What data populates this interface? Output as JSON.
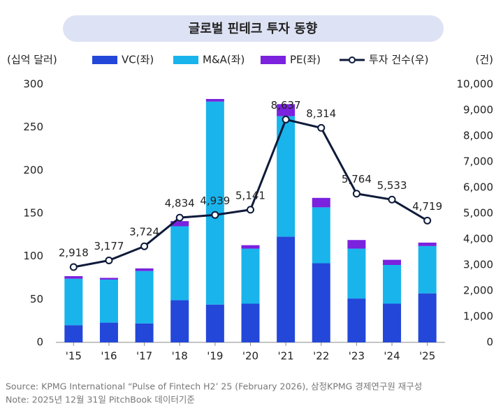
{
  "chart_data": {
    "type": "bar",
    "title": "글로벌 핀테크 투자 동향",
    "y_label": "(십억 달러)",
    "y2_label": "(건)",
    "categories": [
      "'15",
      "'16",
      "'17",
      "'18",
      "'19",
      "'20",
      "'21",
      "'22",
      "'23",
      "'24",
      "'25"
    ],
    "series": [
      {
        "name": "VC(좌)",
        "color": "#2347d9",
        "values": [
          20,
          23,
          22,
          49,
          44,
          45,
          123,
          92,
          51,
          45,
          57
        ]
      },
      {
        "name": "M&A(좌)",
        "color": "#19b4ec",
        "values": [
          54,
          50,
          61,
          86,
          236,
          64,
          140,
          65,
          58,
          45,
          55
        ]
      },
      {
        "name": "PE(좌)",
        "color": "#7a22de",
        "values": [
          3,
          2,
          3,
          6,
          3,
          4,
          14,
          11,
          10,
          6,
          4
        ]
      },
      {
        "name": "투자 건수(우)",
        "color": "#0e1a3a",
        "type": "line",
        "axis": "y2",
        "values": [
          2918,
          3177,
          3724,
          4834,
          4939,
          5141,
          8637,
          8314,
          5764,
          5533,
          4719
        ],
        "value_labels": [
          "2,918",
          "3,177",
          "3,724",
          "4,834",
          "4,939",
          "5,141",
          "8,637",
          "8,314",
          "5,764",
          "5,533",
          "4,719"
        ]
      }
    ],
    "ylim": [
      0,
      300
    ],
    "yticks": [
      0,
      50,
      100,
      150,
      200,
      250,
      300
    ],
    "y2lim": [
      0,
      10000
    ],
    "y2ticks": [
      0,
      {
        "value": 1000,
        "label": "1,000"
      },
      {
        "value": 2000,
        "label": "2,000"
      },
      {
        "value": 3000,
        "label": "3,000"
      },
      {
        "value": 4000,
        "label": "4,000"
      },
      {
        "value": 5000,
        "label": "5,000"
      },
      {
        "value": 6000,
        "label": "6,000"
      },
      {
        "value": 7000,
        "label": "7,000"
      },
      {
        "value": 8000,
        "label": "8,000"
      },
      {
        "value": 9000,
        "label": "9,000"
      },
      {
        "value": 10000,
        "label": "10,000"
      }
    ],
    "notes": [
      "Source: KPMG International “Pulse of Fintech H2’ 25 (February 2026), 삼정KPMG 경제연구원 재구성",
      "Note: 2025년 12월 31일 PitchBook 데이터기준"
    ]
  }
}
